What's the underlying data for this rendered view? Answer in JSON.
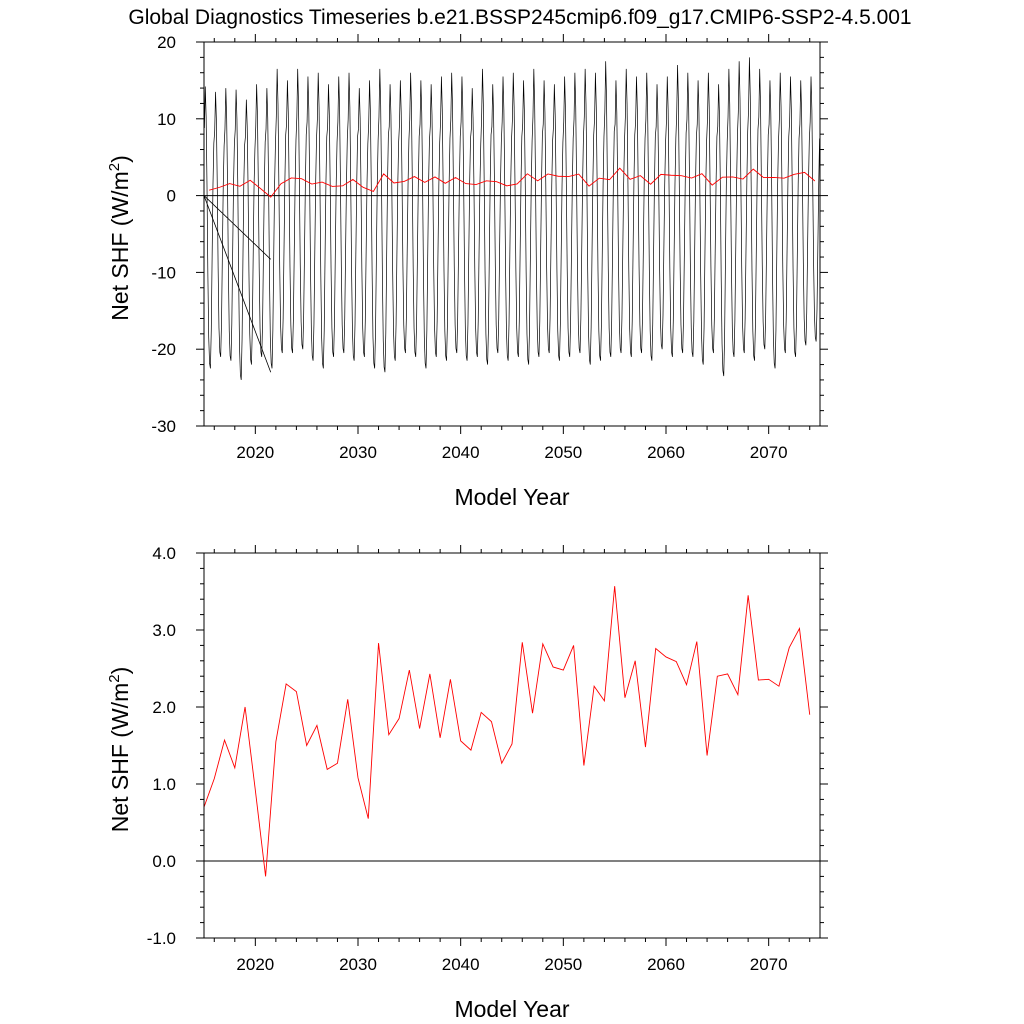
{
  "title": "Global Diagnostics Timeseries b.e21.BSSP245cmip6.f09_g17.CMIP6-SSP2-4.5.001",
  "colors": {
    "monthly": "#000000",
    "annual": "#ff0000",
    "zero_line": "#000000"
  },
  "chart_data": [
    {
      "type": "line",
      "xlabel": "Model Year",
      "ylabel": "Net SHF (W/m²)",
      "ylabel_text": "Net SHF (W/m",
      "ylabel_sup": "2",
      "ylabel_close": ")",
      "xlim": [
        2015,
        2075
      ],
      "ylim": [
        -30,
        20
      ],
      "xticks": [
        2020,
        2030,
        2040,
        2050,
        2060,
        2070
      ],
      "xtick_labels": [
        "2020",
        "2030",
        "2040",
        "2050",
        "2060",
        "2070"
      ],
      "yticks": [
        -30,
        -20,
        -10,
        0,
        10,
        20
      ],
      "ytick_labels": [
        "-30",
        "-20",
        "-10",
        "0",
        "10",
        "20"
      ],
      "reference_line": 0,
      "monthly_seasonal_cycle": {
        "peak_month_index": 1,
        "trough_month_index": 7,
        "peaks": [
          14.2,
          13.5,
          14.0,
          13.8,
          12.5,
          14.5,
          14.0,
          16.5,
          15.0,
          16.5,
          15.5,
          16.0,
          14.5,
          15.5,
          16.0,
          14.0,
          15.0,
          16.5,
          14.5,
          15.0,
          16.0,
          15.0,
          14.5,
          15.5,
          16.0,
          15.5,
          14.0,
          16.5,
          14.5,
          15.5,
          16.0,
          15.0,
          16.5,
          15.0,
          14.5,
          15.5,
          16.0,
          16.5,
          16.0,
          17.5,
          15.0,
          16.5,
          15.5,
          16.0,
          14.5,
          15.5,
          17.0,
          16.0,
          15.0,
          16.0,
          14.5,
          16.5,
          17.5,
          18.0,
          16.5,
          15.0,
          16.0,
          15.5,
          15.0,
          15.5
        ],
        "troughs": [
          -22.5,
          -21.0,
          -21.5,
          -24.0,
          -22.0,
          -21.0,
          -22.5,
          -20.5,
          -20.5,
          -20.0,
          -21.5,
          -22.5,
          -21.0,
          -20.5,
          -21.5,
          -21.0,
          -22.5,
          -23.0,
          -21.5,
          -20.5,
          -21.0,
          -22.5,
          -21.0,
          -21.5,
          -20.5,
          -21.5,
          -21.0,
          -22.0,
          -20.5,
          -21.5,
          -21.0,
          -22.0,
          -21.0,
          -20.5,
          -21.5,
          -21.0,
          -20.5,
          -22.0,
          -21.5,
          -21.0,
          -20.5,
          -21.0,
          -20.5,
          -21.5,
          -20.0,
          -21.0,
          -20.5,
          -21.0,
          -22.0,
          -20.5,
          -23.5,
          -21.0,
          -20.5,
          -21.5,
          -20.0,
          -22.5,
          -20.5,
          -21.0,
          -19.5,
          -19.0
        ],
        "stray_segments": [
          {
            "x": [
              2015.0,
              2021.5
            ],
            "y": [
              0,
              -8.3
            ]
          },
          {
            "x": [
              2015.0,
              2021.5
            ],
            "y": [
              0,
              -23.0
            ]
          }
        ]
      },
      "series": [
        {
          "x": [
            2015.5,
            2016.5,
            2017.5,
            2018.5,
            2019.5,
            2020.5,
            2021.5,
            2022.5,
            2023.5,
            2024.5,
            2025.5,
            2026.5,
            2027.5,
            2028.5,
            2029.5,
            2030.5,
            2031.5,
            2032.5,
            2033.5,
            2034.5,
            2035.5,
            2036.5,
            2037.5,
            2038.5,
            2039.5,
            2040.5,
            2041.5,
            2042.5,
            2043.5,
            2044.5,
            2045.5,
            2046.5,
            2047.5,
            2048.5,
            2049.5,
            2050.5,
            2051.5,
            2052.5,
            2053.5,
            2054.5,
            2055.5,
            2056.5,
            2057.5,
            2058.5,
            2059.5,
            2060.5,
            2061.5,
            2062.5,
            2063.5,
            2064.5,
            2065.5,
            2066.5,
            2067.5,
            2068.5,
            2069.5,
            2070.5,
            2071.5,
            2072.5,
            2073.5,
            2074.5
          ],
          "values": [
            0.7,
            1.07,
            1.57,
            1.21,
            2.0,
            0.92,
            -0.2,
            1.55,
            2.3,
            2.2,
            1.5,
            1.76,
            1.19,
            1.27,
            2.1,
            1.08,
            0.55,
            2.83,
            1.64,
            1.85,
            2.48,
            1.72,
            2.43,
            1.6,
            2.36,
            1.56,
            1.44,
            1.93,
            1.81,
            1.27,
            1.52,
            2.84,
            1.92,
            2.82,
            2.52,
            2.48,
            2.8,
            1.24,
            2.27,
            2.08,
            3.57,
            2.12,
            2.6,
            1.48,
            2.76,
            2.65,
            2.59,
            2.29,
            2.85,
            1.37,
            2.4,
            2.43,
            2.16,
            3.45,
            2.35,
            2.36,
            2.27,
            2.77,
            3.02,
            1.9
          ]
        }
      ]
    },
    {
      "type": "line",
      "xlabel": "Model Year",
      "ylabel": "Net SHF (W/m²)",
      "ylabel_text": "Net SHF (W/m",
      "ylabel_sup": "2",
      "ylabel_close": ")",
      "xlim": [
        2015,
        2075
      ],
      "ylim": [
        -1.0,
        4.0
      ],
      "xticks": [
        2020,
        2030,
        2040,
        2050,
        2060,
        2070
      ],
      "xtick_labels": [
        "2020",
        "2030",
        "2040",
        "2050",
        "2060",
        "2070"
      ],
      "yticks": [
        -1.0,
        0.0,
        1.0,
        2.0,
        3.0,
        4.0
      ],
      "ytick_labels": [
        "-1.0",
        "0.0",
        "1.0",
        "2.0",
        "3.0",
        "4.0"
      ],
      "reference_line": 0,
      "series": [
        {
          "x": [
            2015.0,
            2016.0,
            2017.0,
            2018.0,
            2019.0,
            2020.0,
            2021.0,
            2022.0,
            2023.0,
            2024.0,
            2025.0,
            2026.0,
            2027.0,
            2028.0,
            2029.0,
            2030.0,
            2031.0,
            2032.0,
            2033.0,
            2034.0,
            2035.0,
            2036.0,
            2037.0,
            2038.0,
            2039.0,
            2040.0,
            2041.0,
            2042.0,
            2043.0,
            2044.0,
            2045.0,
            2046.0,
            2047.0,
            2048.0,
            2049.0,
            2050.0,
            2051.0,
            2052.0,
            2053.0,
            2054.0,
            2055.0,
            2056.0,
            2057.0,
            2058.0,
            2059.0,
            2060.0,
            2061.0,
            2062.0,
            2063.0,
            2064.0,
            2065.0,
            2066.0,
            2067.0,
            2068.0,
            2069.0,
            2070.0,
            2071.0,
            2072.0,
            2073.0,
            2074.0
          ],
          "values": [
            0.7,
            1.07,
            1.57,
            1.21,
            2.0,
            0.92,
            -0.2,
            1.55,
            2.3,
            2.2,
            1.5,
            1.76,
            1.19,
            1.27,
            2.1,
            1.08,
            0.55,
            2.83,
            1.64,
            1.85,
            2.48,
            1.72,
            2.43,
            1.6,
            2.36,
            1.56,
            1.44,
            1.93,
            1.81,
            1.27,
            1.52,
            2.84,
            1.92,
            2.82,
            2.52,
            2.48,
            2.8,
            1.24,
            2.27,
            2.08,
            3.57,
            2.12,
            2.6,
            1.48,
            2.76,
            2.65,
            2.59,
            2.29,
            2.85,
            1.37,
            2.4,
            2.43,
            2.16,
            3.45,
            2.35,
            2.36,
            2.27,
            2.77,
            3.02,
            1.9
          ]
        }
      ]
    }
  ]
}
